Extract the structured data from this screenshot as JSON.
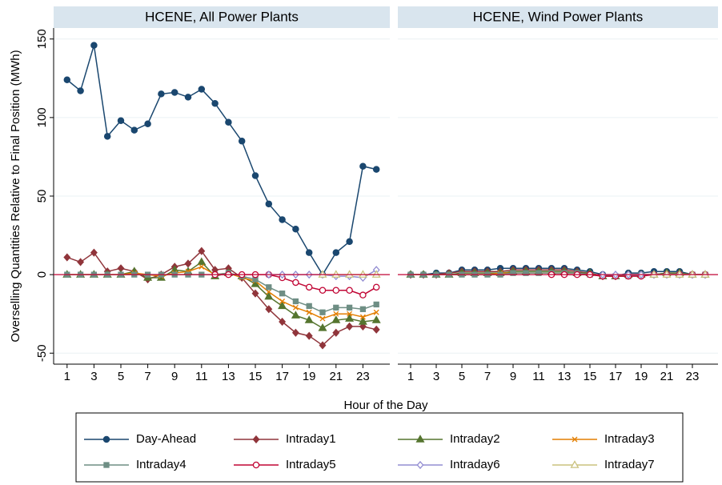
{
  "chart_data": [
    {
      "type": "line",
      "title": "HCENE, All Power Plants",
      "ylabel": "Overselling Quantities Relative to Final Position (MWh)",
      "xlabel": "Hour of the Day",
      "x": [
        1,
        2,
        3,
        4,
        5,
        6,
        7,
        8,
        9,
        10,
        11,
        12,
        13,
        14,
        15,
        16,
        17,
        18,
        19,
        20,
        21,
        22,
        23,
        24
      ],
      "xlim": [
        0,
        25
      ],
      "xticks": [
        1,
        3,
        5,
        7,
        9,
        11,
        13,
        15,
        17,
        19,
        21,
        23
      ],
      "ylim": [
        -57,
        157
      ],
      "yticks": [
        -50,
        0,
        50,
        100,
        150
      ],
      "grid": true,
      "hline": 0,
      "hline_color": "#c10534",
      "series": [
        {
          "name": "Day-Ahead",
          "color": "#1a476f",
          "marker": "circle",
          "values": [
            124,
            117,
            146,
            88,
            98,
            92,
            96,
            115,
            116,
            113,
            118,
            109,
            97,
            85,
            63,
            45,
            35,
            29,
            14,
            0,
            14,
            21,
            69,
            67
          ]
        },
        {
          "name": "Intraday1",
          "color": "#90353b",
          "marker": "diamond",
          "values": [
            11,
            8,
            14,
            2,
            4,
            2,
            -3,
            0,
            5,
            7,
            15,
            3,
            4,
            -2,
            -12,
            -22,
            -30,
            -37,
            -39,
            -45,
            -37,
            -33,
            -33,
            -35
          ]
        },
        {
          "name": "Intraday2",
          "color": "#55752f",
          "marker": "triangle",
          "values": [
            0,
            0,
            0,
            0,
            0,
            2,
            -2,
            -2,
            3,
            2,
            8,
            -1,
            1,
            -1,
            -6,
            -14,
            -20,
            -26,
            -29,
            -34,
            -29,
            -28,
            -30,
            -29
          ]
        },
        {
          "name": "Intraday3",
          "color": "#e37e00",
          "marker": "x",
          "values": [
            0,
            0,
            0,
            0,
            0,
            1,
            0,
            -1,
            1,
            2,
            5,
            0,
            1,
            -2,
            -4,
            -11,
            -17,
            -21,
            -24,
            -28,
            -25,
            -25,
            -27,
            -24
          ]
        },
        {
          "name": "Intraday4",
          "color": "#6e8e84",
          "marker": "square",
          "values": [
            0,
            0,
            0,
            0,
            0,
            0,
            0,
            0,
            0,
            0,
            0,
            0,
            1,
            -1,
            -3,
            -8,
            -12,
            -17,
            -20,
            -24,
            -21,
            -21,
            -22,
            -19
          ]
        },
        {
          "name": "Intraday5",
          "color": "#c10534",
          "marker": "hollow-circle",
          "values": [
            null,
            null,
            null,
            null,
            null,
            null,
            null,
            null,
            null,
            null,
            null,
            0,
            0,
            0,
            0,
            0,
            -2,
            -5,
            -8,
            -10,
            -10,
            -10,
            -13,
            -8
          ]
        },
        {
          "name": "Intraday6",
          "color": "#938dd2",
          "marker": "hollow-diamond",
          "values": [
            null,
            null,
            null,
            null,
            null,
            null,
            null,
            null,
            null,
            null,
            null,
            null,
            null,
            null,
            null,
            0,
            0,
            0,
            0,
            0,
            -1,
            -1,
            -2,
            3
          ]
        },
        {
          "name": "Intraday7",
          "color": "#cac27e",
          "marker": "hollow-triangle",
          "values": [
            null,
            null,
            null,
            null,
            null,
            null,
            null,
            null,
            null,
            null,
            null,
            null,
            null,
            null,
            null,
            null,
            null,
            null,
            null,
            0,
            0,
            0,
            0,
            0
          ]
        }
      ]
    },
    {
      "type": "line",
      "title": "HCENE, Wind Power Plants",
      "x": [
        1,
        2,
        3,
        4,
        5,
        6,
        7,
        8,
        9,
        10,
        11,
        12,
        13,
        14,
        15,
        16,
        17,
        18,
        19,
        20,
        21,
        22,
        23,
        24
      ],
      "xlim": [
        0,
        25
      ],
      "xticks": [
        1,
        3,
        5,
        7,
        9,
        11,
        13,
        15,
        17,
        19,
        21,
        23
      ],
      "ylim": [
        -57,
        157
      ],
      "yticks": [
        -50,
        0,
        50,
        100,
        150
      ],
      "grid": true,
      "hline": 0,
      "hline_color": "#c10534",
      "series": [
        {
          "name": "Day-Ahead",
          "color": "#1a476f",
          "marker": "circle",
          "values": [
            0,
            0,
            1,
            1,
            3,
            3,
            3,
            4,
            4,
            4,
            4,
            4,
            4,
            3,
            2,
            0,
            -1,
            1,
            1,
            2,
            2,
            2,
            0,
            0
          ]
        },
        {
          "name": "Intraday1",
          "color": "#90353b",
          "marker": "diamond",
          "values": [
            0,
            0,
            0,
            1,
            2,
            2,
            2,
            2,
            3,
            3,
            3,
            3,
            3,
            2,
            1,
            -1,
            -1,
            0,
            0,
            0,
            1,
            1,
            0,
            0
          ]
        },
        {
          "name": "Intraday2",
          "color": "#55752f",
          "marker": "triangle",
          "values": [
            0,
            0,
            0,
            0,
            1,
            1,
            1,
            1,
            2,
            2,
            2,
            2,
            2,
            1,
            1,
            -1,
            -1,
            0,
            0,
            0,
            1,
            1,
            0,
            0
          ]
        },
        {
          "name": "Intraday3",
          "color": "#e37e00",
          "marker": "x",
          "values": [
            0,
            0,
            0,
            0,
            0,
            0,
            0,
            1,
            1,
            1,
            1,
            1,
            1,
            1,
            0,
            -1,
            -1,
            -1,
            0,
            0,
            0,
            0,
            0,
            0
          ]
        },
        {
          "name": "Intraday4",
          "color": "#6e8e84",
          "marker": "square",
          "values": [
            0,
            0,
            0,
            0,
            0,
            0,
            0,
            0,
            1,
            1,
            1,
            1,
            1,
            1,
            0,
            -1,
            -1,
            -1,
            0,
            0,
            0,
            0,
            0,
            0
          ]
        },
        {
          "name": "Intraday5",
          "color": "#c10534",
          "marker": "hollow-circle",
          "values": [
            null,
            null,
            null,
            null,
            null,
            null,
            null,
            null,
            null,
            null,
            null,
            0,
            0,
            0,
            0,
            -1,
            -1,
            -1,
            -1,
            0,
            0,
            0,
            0,
            0
          ]
        },
        {
          "name": "Intraday6",
          "color": "#938dd2",
          "marker": "hollow-diamond",
          "values": [
            null,
            null,
            null,
            null,
            null,
            null,
            null,
            null,
            null,
            null,
            null,
            null,
            null,
            null,
            null,
            0,
            0,
            0,
            0,
            0,
            0,
            0,
            0,
            0
          ]
        },
        {
          "name": "Intraday7",
          "color": "#cac27e",
          "marker": "hollow-triangle",
          "values": [
            null,
            null,
            null,
            null,
            null,
            null,
            null,
            null,
            null,
            null,
            null,
            null,
            null,
            null,
            null,
            null,
            null,
            null,
            null,
            0,
            0,
            0,
            0,
            0
          ]
        }
      ]
    }
  ]
}
